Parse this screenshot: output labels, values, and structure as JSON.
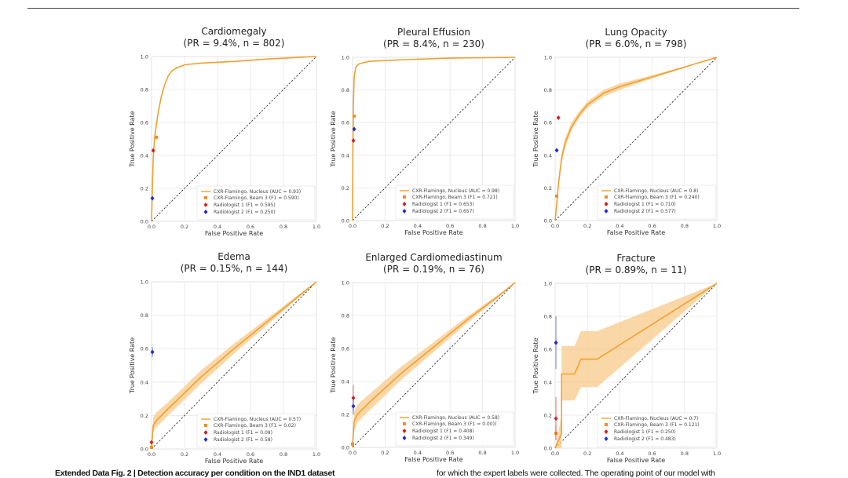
{
  "caption": {
    "left": "Extended Data Fig. 2 | Detection accuracy per condition on the IND1 dataset",
    "right": "for which the expert labels were collected. The operating point of our model with"
  },
  "colors": {
    "model": "#f0a030",
    "band": "#f8c98a",
    "beam": "#f28c28",
    "radiologist1": "#d62020",
    "radiologist2": "#1f2fc8",
    "diagonal": "#222222",
    "grid": "#e6e6e6"
  },
  "chart_data": [
    {
      "type": "line",
      "title": "Cardiomegaly",
      "subtitle": "(PR = 9.4%, n = 802)",
      "xlabel": "False Positive Rate",
      "ylabel": "True Positive Rate",
      "xlim": [
        0,
        1
      ],
      "ylim": [
        0,
        1
      ],
      "ticks": [
        "0.0",
        "0.2",
        "0.4",
        "0.6",
        "0.8",
        "1.0"
      ],
      "grid": true,
      "legend": "bottom-right",
      "curve": {
        "name": "CXR-Flamingo, Nucleus (AUC = 0.93)",
        "x": [
          0,
          0.005,
          0.01,
          0.02,
          0.04,
          0.06,
          0.08,
          0.1,
          0.12,
          0.15,
          0.2,
          0.3,
          0.5,
          0.7,
          1.0
        ],
        "y": [
          0,
          0.2,
          0.38,
          0.52,
          0.66,
          0.76,
          0.83,
          0.88,
          0.91,
          0.93,
          0.95,
          0.96,
          0.97,
          0.985,
          1.0
        ]
      },
      "points": [
        {
          "name": "CXR-Flamingo, Beam 3 (F1 = 0.590)",
          "kind": "beam",
          "x": 0.03,
          "y": 0.51
        },
        {
          "name": "Radiologist 1 (F1 = 0.595)",
          "kind": "radiologist1",
          "x": 0.01,
          "y": 0.43
        },
        {
          "name": "Radiologist 2 (F1 = 0.250)",
          "kind": "radiologist2",
          "x": 0.005,
          "y": 0.14
        }
      ]
    },
    {
      "type": "line",
      "title": "Pleural Effusion",
      "subtitle": "(PR = 8.4%, n = 230)",
      "xlabel": "False Positive Rate",
      "ylabel": "True Positive Rate",
      "xlim": [
        0,
        1
      ],
      "ylim": [
        0,
        1
      ],
      "ticks": [
        "0.0",
        "0.2",
        "0.4",
        "0.6",
        "0.8",
        "1.0"
      ],
      "grid": true,
      "legend": "bottom-right",
      "curve": {
        "name": "CXR-Flamingo, Nucleus (AUC = 0.98)",
        "x": [
          0,
          0.002,
          0.005,
          0.01,
          0.02,
          0.04,
          0.1,
          0.3,
          0.6,
          1.0
        ],
        "y": [
          0,
          0.4,
          0.7,
          0.88,
          0.94,
          0.96,
          0.975,
          0.985,
          0.995,
          1.0
        ]
      },
      "points": [
        {
          "name": "CXR-Flamingo, Beam 3 (F1 = 0.721)",
          "kind": "beam",
          "x": 0.01,
          "y": 0.64
        },
        {
          "name": "Radiologist 1 (F1 = 0.653)",
          "kind": "radiologist1",
          "x": 0.005,
          "y": 0.49
        },
        {
          "name": "Radiologist 2 (F1 = 0.657)",
          "kind": "radiologist2",
          "x": 0.01,
          "y": 0.56
        }
      ]
    },
    {
      "type": "line",
      "title": "Lung Opacity",
      "subtitle": "(PR = 6.0%, n = 798)",
      "xlabel": "False Positive Rate",
      "ylabel": "True Positive Rate",
      "xlim": [
        0,
        1
      ],
      "ylim": [
        0,
        1
      ],
      "ticks": [
        "0.0",
        "0.2",
        "0.4",
        "0.6",
        "0.8",
        "1.0"
      ],
      "grid": true,
      "legend": "bottom-right",
      "curve": {
        "name": "CXR-Flamingo, Nucleus (AUC = 0.8)",
        "x": [
          0,
          0.01,
          0.02,
          0.04,
          0.06,
          0.1,
          0.15,
          0.2,
          0.3,
          0.4,
          0.6,
          0.8,
          1.0
        ],
        "y": [
          0,
          0.1,
          0.22,
          0.38,
          0.47,
          0.57,
          0.65,
          0.71,
          0.78,
          0.82,
          0.88,
          0.94,
          1.0
        ],
        "ci_lower": [
          0,
          0.08,
          0.19,
          0.35,
          0.44,
          0.55,
          0.63,
          0.69,
          0.76,
          0.8,
          0.87,
          0.935,
          1.0
        ],
        "ci_upper": [
          0,
          0.12,
          0.25,
          0.41,
          0.5,
          0.6,
          0.67,
          0.73,
          0.8,
          0.84,
          0.89,
          0.945,
          1.0
        ]
      },
      "points": [
        {
          "name": "CXR-Flamingo, Beam 3 (F1 = 0.240)",
          "kind": "beam",
          "x": 0.01,
          "y": 0.15
        },
        {
          "name": "Radiologist 1 (F1 = 0.710)",
          "kind": "radiologist1",
          "x": 0.02,
          "y": 0.63
        },
        {
          "name": "Radiologist 2 (F1 = 0.577)",
          "kind": "radiologist2",
          "x": 0.01,
          "y": 0.43
        }
      ]
    },
    {
      "type": "line",
      "title": "Edema",
      "subtitle": "(PR = 0.15%, n = 144)",
      "xlabel": "False Positive Rate",
      "ylabel": "True Positive Rate",
      "xlim": [
        0,
        1
      ],
      "ylim": [
        0,
        1
      ],
      "ticks": [
        "0.0",
        "0.2",
        "0.4",
        "0.6",
        "0.8",
        "1.0"
      ],
      "grid": true,
      "legend": "bottom-right",
      "curve": {
        "name": "CXR-Flamingo, Nucleus (AUC = 0.57)",
        "x": [
          0,
          0.01,
          0.03,
          0.1,
          0.3,
          0.5,
          0.7,
          0.9,
          1.0
        ],
        "y": [
          0,
          0.14,
          0.17,
          0.24,
          0.43,
          0.6,
          0.76,
          0.92,
          1.0
        ],
        "ci_lower": [
          0,
          0.1,
          0.13,
          0.2,
          0.39,
          0.57,
          0.74,
          0.91,
          1.0
        ],
        "ci_upper": [
          0,
          0.19,
          0.22,
          0.28,
          0.47,
          0.63,
          0.78,
          0.93,
          1.0
        ]
      },
      "points": [
        {
          "name": "CXR-Flamingo, Beam 3 (F1 = 0.02)",
          "kind": "beam",
          "x": 0.0,
          "y": 0.01
        },
        {
          "name": "Radiologist 1 (F1 = 0.08)",
          "kind": "radiologist1",
          "x": 0.0,
          "y": 0.04
        },
        {
          "name": "Radiologist 2 (F1 = 0.58)",
          "kind": "radiologist2",
          "x": 0.005,
          "y": 0.58,
          "err": [
            0.55,
            0.61
          ]
        }
      ]
    },
    {
      "type": "line",
      "title": "Enlarged Cardiomediastinum",
      "subtitle": "(PR = 0.19%, n = 76)",
      "xlabel": "False Positive Rate",
      "ylabel": "True Positive Rate",
      "xlim": [
        0,
        1
      ],
      "ylim": [
        0,
        1
      ],
      "ticks": [
        "0.0",
        "0.2",
        "0.4",
        "0.6",
        "0.8",
        "1.0"
      ],
      "grid": true,
      "legend": "bottom-right",
      "curve": {
        "name": "CXR-Flamingo, Nucleus (AUC = 0.58)",
        "x": [
          0,
          0.01,
          0.03,
          0.1,
          0.3,
          0.5,
          0.7,
          0.9,
          1.0
        ],
        "y": [
          0,
          0.16,
          0.2,
          0.27,
          0.45,
          0.61,
          0.77,
          0.92,
          1.0
        ],
        "ci_lower": [
          0,
          0.1,
          0.15,
          0.22,
          0.41,
          0.58,
          0.75,
          0.91,
          1.0
        ],
        "ci_upper": [
          0,
          0.22,
          0.26,
          0.32,
          0.49,
          0.64,
          0.79,
          0.93,
          1.0
        ]
      },
      "points": [
        {
          "name": "CXR-Flamingo, Beam 3 (F1 = 0.00))",
          "kind": "beam",
          "x": 0.0,
          "y": 0.02
        },
        {
          "name": "Radiologist 1 (F1 = 0.408)",
          "kind": "radiologist1",
          "x": 0.005,
          "y": 0.3,
          "err": [
            0.22,
            0.38
          ]
        },
        {
          "name": "Radiologist 2 (F1 = 0.349)",
          "kind": "radiologist2",
          "x": 0.005,
          "y": 0.25,
          "err": [
            0.2,
            0.3
          ]
        }
      ]
    },
    {
      "type": "line",
      "title": "Fracture",
      "subtitle": "(PR = 0.89%, n = 11)",
      "xlabel": "False Positive Rate",
      "ylabel": "True Positive Rate",
      "xlim": [
        0,
        1
      ],
      "ylim": [
        0,
        1
      ],
      "ticks": [
        "0.0",
        "0.2",
        "0.4",
        "0.6",
        "0.8",
        "1.0"
      ],
      "grid": true,
      "legend": "bottom-right",
      "curve": {
        "name": "CXR-Flamingo, Nucleus (AUC = 0.7)",
        "x": [
          0,
          0.04,
          0.04,
          0.12,
          0.16,
          0.26,
          1.0
        ],
        "y": [
          0,
          0.09,
          0.45,
          0.45,
          0.54,
          0.54,
          1.0
        ],
        "ci_lower": [
          0,
          0.0,
          0.29,
          0.29,
          0.37,
          0.37,
          1.0
        ],
        "ci_upper": [
          0,
          0.2,
          0.62,
          0.62,
          0.71,
          0.71,
          1.0
        ]
      },
      "points": [
        {
          "name": "CXR-Flamingo, Beam 3 (F1 = 0.121)",
          "kind": "beam",
          "x": 0.005,
          "y": 0.09,
          "err": [
            0.05,
            0.14
          ]
        },
        {
          "name": "Radiologist 1 (F1 = 0.250)",
          "kind": "radiologist1",
          "x": 0.005,
          "y": 0.18,
          "err": [
            0.05,
            0.31
          ]
        },
        {
          "name": "Radiologist 2 (F1 = 0.483)",
          "kind": "radiologist2",
          "x": 0.005,
          "y": 0.64,
          "err": [
            0.48,
            0.8
          ]
        }
      ]
    }
  ]
}
